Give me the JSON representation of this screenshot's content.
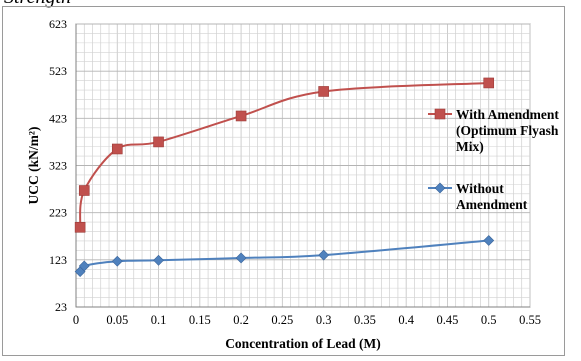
{
  "chart_data": {
    "type": "line",
    "title": "Strength",
    "xlabel": "Concentration of Lead (M)",
    "ylabel": "UCC (kN/m²)",
    "xlim": [
      0,
      0.55
    ],
    "ylim": [
      23,
      623
    ],
    "xticks": [
      "0",
      "0.05",
      "0.1",
      "0.15",
      "0.2",
      "0.25",
      "0.3",
      "0.35",
      "0.4",
      "0.45",
      "0.5",
      "0.55"
    ],
    "yticks": [
      "23",
      "123",
      "223",
      "323",
      "423",
      "523",
      "623"
    ],
    "grid": true,
    "legend_position": "right",
    "series": [
      {
        "name": "With Amendment (Optimum Flyash Mix)",
        "legend_lines": [
          "With Amendment",
          "(Optimum Flyash",
          "Mix)"
        ],
        "color": "#c0504d",
        "marker": "square",
        "x": [
          0.005,
          0.01,
          0.05,
          0.1,
          0.2,
          0.3,
          0.5
        ],
        "y": [
          192,
          270,
          358,
          373,
          428,
          480,
          498
        ]
      },
      {
        "name": "Without Amendment",
        "legend_lines": [
          "Without",
          "Amendment"
        ],
        "color": "#4f81bd",
        "marker": "diamond",
        "x": [
          0.005,
          0.01,
          0.05,
          0.1,
          0.2,
          0.3,
          0.5
        ],
        "y": [
          98,
          110,
          120,
          122,
          127,
          133,
          164
        ]
      }
    ]
  }
}
